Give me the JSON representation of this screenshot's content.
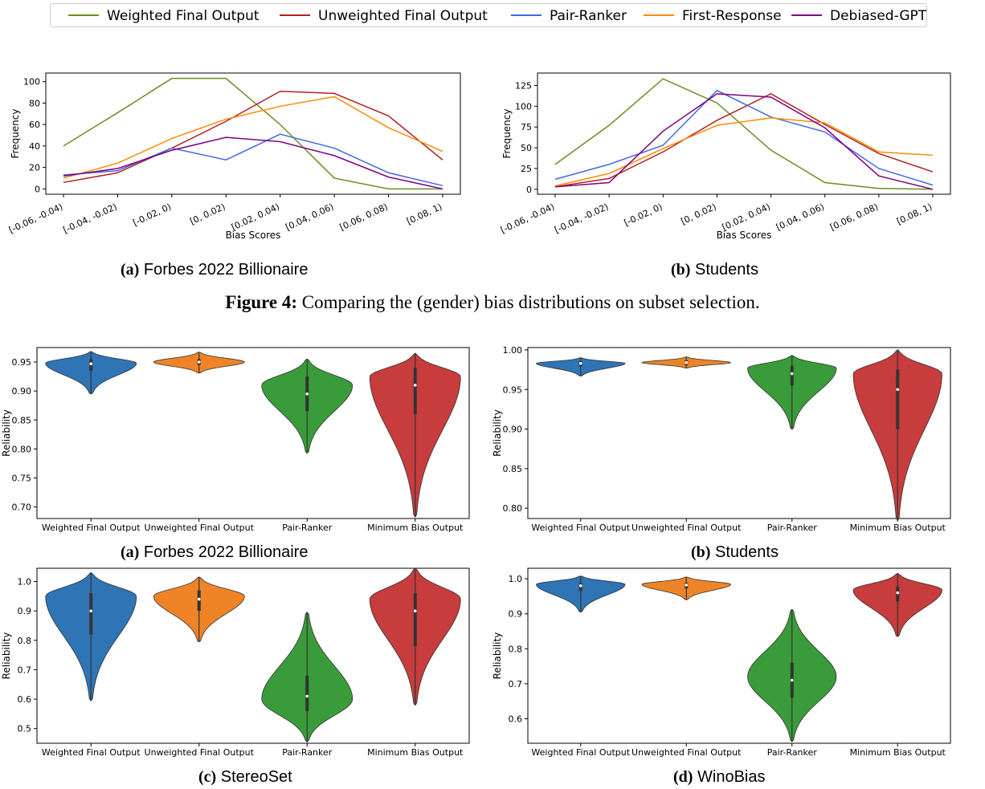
{
  "legend": [
    {
      "label": "Weighted Final Output",
      "color": "#6b8e23"
    },
    {
      "label": "Unweighted Final Output",
      "color": "#b22222"
    },
    {
      "label": "Pair-Ranker",
      "color": "#4169e1"
    },
    {
      "label": "First-Response",
      "color": "#ff8c00"
    },
    {
      "label": "Debiased-GPT",
      "color": "#800080"
    }
  ],
  "captions": {
    "line_a": {
      "letter": "(a)",
      "text": "Forbes 2022 Billionaire"
    },
    "line_b": {
      "letter": "(b)",
      "text": "Students"
    },
    "figure4": {
      "label": "Figure 4:",
      "text": "Comparing the (gender) bias distributions on subset selection."
    },
    "violin_a": {
      "letter": "(a)",
      "text": "Forbes 2022 Billionaire"
    },
    "violin_b": {
      "letter": "(b)",
      "text": "Students"
    },
    "violin_c": {
      "letter": "(c)",
      "text": "StereoSet"
    },
    "violin_d": {
      "letter": "(d)",
      "text": "WinoBias"
    }
  },
  "chart_data": [
    {
      "type": "line",
      "xlabel": "Bias Scores",
      "ylabel": "Frequency",
      "categories": [
        "[-0.06, -0.04)",
        "[-0.04, -0.02)",
        "[-0.02, 0)",
        "[0, 0.02)",
        "[0.02, 0.04)",
        "[0.04, 0.06)",
        "[0.06, 0.08)",
        "[0.08, 1)"
      ],
      "ylim": [
        -5,
        108
      ],
      "yticks": [
        0,
        20,
        40,
        60,
        80,
        100
      ],
      "series": [
        {
          "name": "Weighted Final Output",
          "color": "#6b8e23",
          "values": [
            40,
            71,
            103,
            103,
            60,
            10,
            0,
            0
          ]
        },
        {
          "name": "Unweighted Final Output",
          "color": "#b22222",
          "values": [
            6,
            15,
            38,
            63,
            91,
            89,
            68,
            27
          ]
        },
        {
          "name": "Pair-Ranker",
          "color": "#4169e1",
          "values": [
            13,
            17,
            38,
            27,
            51,
            38,
            15,
            3
          ]
        },
        {
          "name": "First-Response",
          "color": "#ff8c00",
          "values": [
            10,
            24,
            47,
            65,
            77,
            86,
            57,
            35
          ]
        },
        {
          "name": "Debiased-GPT",
          "color": "#800080",
          "values": [
            12,
            19,
            36,
            48,
            44,
            31,
            11,
            0
          ]
        }
      ]
    },
    {
      "type": "line",
      "xlabel": "Bias Scores",
      "ylabel": "Frequency",
      "categories": [
        "[-0.06, -0.04)",
        "[-0.04, -0.02)",
        "[-0.02, 0)",
        "[0, 0.02)",
        "[0.02, 0.04)",
        "[0.04, 0.06)",
        "[0.06, 0.08)",
        "[0.08, 1)"
      ],
      "ylim": [
        -6,
        140
      ],
      "yticks": [
        0,
        25,
        50,
        75,
        100,
        125
      ],
      "series": [
        {
          "name": "Weighted Final Output",
          "color": "#6b8e23",
          "values": [
            30,
            77,
            133,
            104,
            47,
            8,
            1,
            0
          ]
        },
        {
          "name": "Unweighted Final Output",
          "color": "#b22222",
          "values": [
            3,
            13,
            45,
            83,
            115,
            78,
            43,
            21
          ]
        },
        {
          "name": "Pair-Ranker",
          "color": "#4169e1",
          "values": [
            12,
            30,
            53,
            119,
            87,
            69,
            25,
            5
          ]
        },
        {
          "name": "First-Response",
          "color": "#ff8c00",
          "values": [
            4,
            19,
            49,
            77,
            86,
            80,
            45,
            41
          ]
        },
        {
          "name": "Debiased-GPT",
          "color": "#800080",
          "values": [
            3,
            8,
            70,
            115,
            111,
            74,
            16,
            0
          ]
        }
      ]
    },
    {
      "type": "violin",
      "ylabel": "Reliability",
      "categories": [
        "Weighted Final Output",
        "Unweighted Final Output",
        "Pair-Ranker",
        "Minimum Bias Output"
      ],
      "ylim": [
        0.68,
        0.975
      ],
      "yticks": [
        0.7,
        0.75,
        0.8,
        0.85,
        0.9,
        0.95
      ],
      "colors": [
        "#2f74b5",
        "#ee8427",
        "#3a9b3a",
        "#c73c3c"
      ],
      "distributions": [
        {
          "min": 0.895,
          "max": 0.968,
          "q1": 0.935,
          "median": 0.947,
          "q3": 0.955,
          "peak": 0.948
        },
        {
          "min": 0.931,
          "max": 0.967,
          "q1": 0.945,
          "median": 0.95,
          "q3": 0.955,
          "peak": 0.95
        },
        {
          "min": 0.793,
          "max": 0.955,
          "q1": 0.865,
          "median": 0.895,
          "q3": 0.925,
          "peak": 0.91
        },
        {
          "min": 0.683,
          "max": 0.965,
          "q1": 0.86,
          "median": 0.91,
          "q3": 0.94,
          "peak": 0.925
        }
      ]
    },
    {
      "type": "violin",
      "ylabel": "Reliability",
      "categories": [
        "Weighted Final Output",
        "Unweighted Final Output",
        "Pair-Ranker",
        "Minimum Bias Output"
      ],
      "ylim": [
        0.787,
        1.003
      ],
      "yticks": [
        0.8,
        0.85,
        0.9,
        0.95,
        1.0
      ],
      "colors": [
        "#2f74b5",
        "#ee8427",
        "#3a9b3a",
        "#c73c3c"
      ],
      "distributions": [
        {
          "min": 0.967,
          "max": 0.99,
          "q1": 0.979,
          "median": 0.983,
          "q3": 0.986,
          "peak": 0.983
        },
        {
          "min": 0.977,
          "max": 0.991,
          "q1": 0.981,
          "median": 0.984,
          "q3": 0.987,
          "peak": 0.984
        },
        {
          "min": 0.9,
          "max": 0.993,
          "q1": 0.955,
          "median": 0.97,
          "q3": 0.98,
          "peak": 0.977
        },
        {
          "min": 0.785,
          "max": 1.0,
          "q1": 0.9,
          "median": 0.95,
          "q3": 0.975,
          "peak": 0.97
        }
      ]
    },
    {
      "type": "violin",
      "ylabel": "Reliability",
      "categories": [
        "Weighted Final Output",
        "Unweighted Final Output",
        "Pair-Ranker",
        "Minimum Bias Output"
      ],
      "ylim": [
        0.45,
        1.045
      ],
      "yticks": [
        0.5,
        0.6,
        0.7,
        0.8,
        0.9,
        1.0
      ],
      "colors": [
        "#2f74b5",
        "#ee8427",
        "#3a9b3a",
        "#c73c3c"
      ],
      "distributions": [
        {
          "min": 0.595,
          "max": 1.03,
          "q1": 0.82,
          "median": 0.9,
          "q3": 0.96,
          "peak": 0.95
        },
        {
          "min": 0.795,
          "max": 1.015,
          "q1": 0.9,
          "median": 0.94,
          "q3": 0.97,
          "peak": 0.95
        },
        {
          "min": 0.455,
          "max": 0.895,
          "q1": 0.56,
          "median": 0.61,
          "q3": 0.68,
          "peak": 0.6
        },
        {
          "min": 0.58,
          "max": 1.045,
          "q1": 0.78,
          "median": 0.9,
          "q3": 0.96,
          "peak": 0.94
        }
      ]
    },
    {
      "type": "violin",
      "ylabel": "Reliability",
      "categories": [
        "Weighted Final Output",
        "Unweighted Final Output",
        "Pair-Ranker",
        "Minimum Bias Output"
      ],
      "ylim": [
        0.53,
        1.03
      ],
      "yticks": [
        0.6,
        0.7,
        0.8,
        0.9,
        1.0
      ],
      "colors": [
        "#2f74b5",
        "#ee8427",
        "#3a9b3a",
        "#c73c3c"
      ],
      "distributions": [
        {
          "min": 0.905,
          "max": 1.008,
          "q1": 0.965,
          "median": 0.98,
          "q3": 0.988,
          "peak": 0.984
        },
        {
          "min": 0.94,
          "max": 1.005,
          "q1": 0.972,
          "median": 0.982,
          "q3": 0.988,
          "peak": 0.984
        },
        {
          "min": 0.535,
          "max": 0.912,
          "q1": 0.66,
          "median": 0.71,
          "q3": 0.76,
          "peak": 0.72
        },
        {
          "min": 0.835,
          "max": 1.015,
          "q1": 0.935,
          "median": 0.96,
          "q3": 0.978,
          "peak": 0.968
        }
      ]
    }
  ]
}
